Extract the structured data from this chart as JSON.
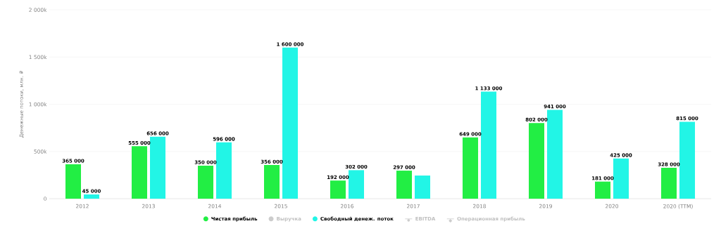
{
  "chart_data": {
    "type": "bar",
    "ylabel": "Денежные потоки, млн. ₽",
    "categories": [
      "2012",
      "2013",
      "2014",
      "2015",
      "2016",
      "2017",
      "2018",
      "2019",
      "2020",
      "2020 (TTM)"
    ],
    "series": [
      {
        "name": "Чистая прибыль",
        "color": "#22ee44",
        "values": [
          365000,
          555000,
          350000,
          356000,
          192000,
          297000,
          649000,
          802000,
          181000,
          328000
        ],
        "value_labels": [
          "365 000",
          "555 000",
          "350 000",
          "356 000",
          "192 000",
          "297 000",
          "649 000",
          "802 000",
          "181 000",
          "328 000"
        ]
      },
      {
        "name": "Выручка",
        "color": "#cccccc",
        "values": [
          null,
          null,
          null,
          null,
          null,
          null,
          null,
          null,
          null,
          null
        ]
      },
      {
        "name": "Свободный денеж. поток",
        "color": "#22f5e6",
        "values": [
          45000,
          656000,
          596000,
          1600000,
          302000,
          245000,
          1133000,
          941000,
          425000,
          815000
        ],
        "value_labels": [
          "45 000",
          "656 000",
          "596 000",
          "1 600 000",
          "302 000",
          null,
          "1 133 000",
          "941 000",
          "425 000",
          "815 000"
        ]
      },
      {
        "name": "EBITDA",
        "type": "line",
        "marker": "circle",
        "color": "#cccccc",
        "values": [
          null,
          null,
          null,
          null,
          null,
          null,
          null,
          null,
          null,
          null
        ]
      },
      {
        "name": "Операционная прибыль",
        "type": "line",
        "marker": "diamond",
        "color": "#cccccc",
        "values": [
          null,
          null,
          null,
          null,
          null,
          null,
          null,
          null,
          null,
          null
        ]
      }
    ],
    "ylim": [
      0,
      2000000
    ],
    "yticks": [
      {
        "value": 0,
        "label": "0"
      },
      {
        "value": 500000,
        "label": "500k"
      },
      {
        "value": 1000000,
        "label": "1 000k"
      },
      {
        "value": 1500000,
        "label": "1 500k"
      },
      {
        "value": 2000000,
        "label": "2 000k"
      }
    ],
    "grid": "y",
    "legend": "bottom"
  }
}
